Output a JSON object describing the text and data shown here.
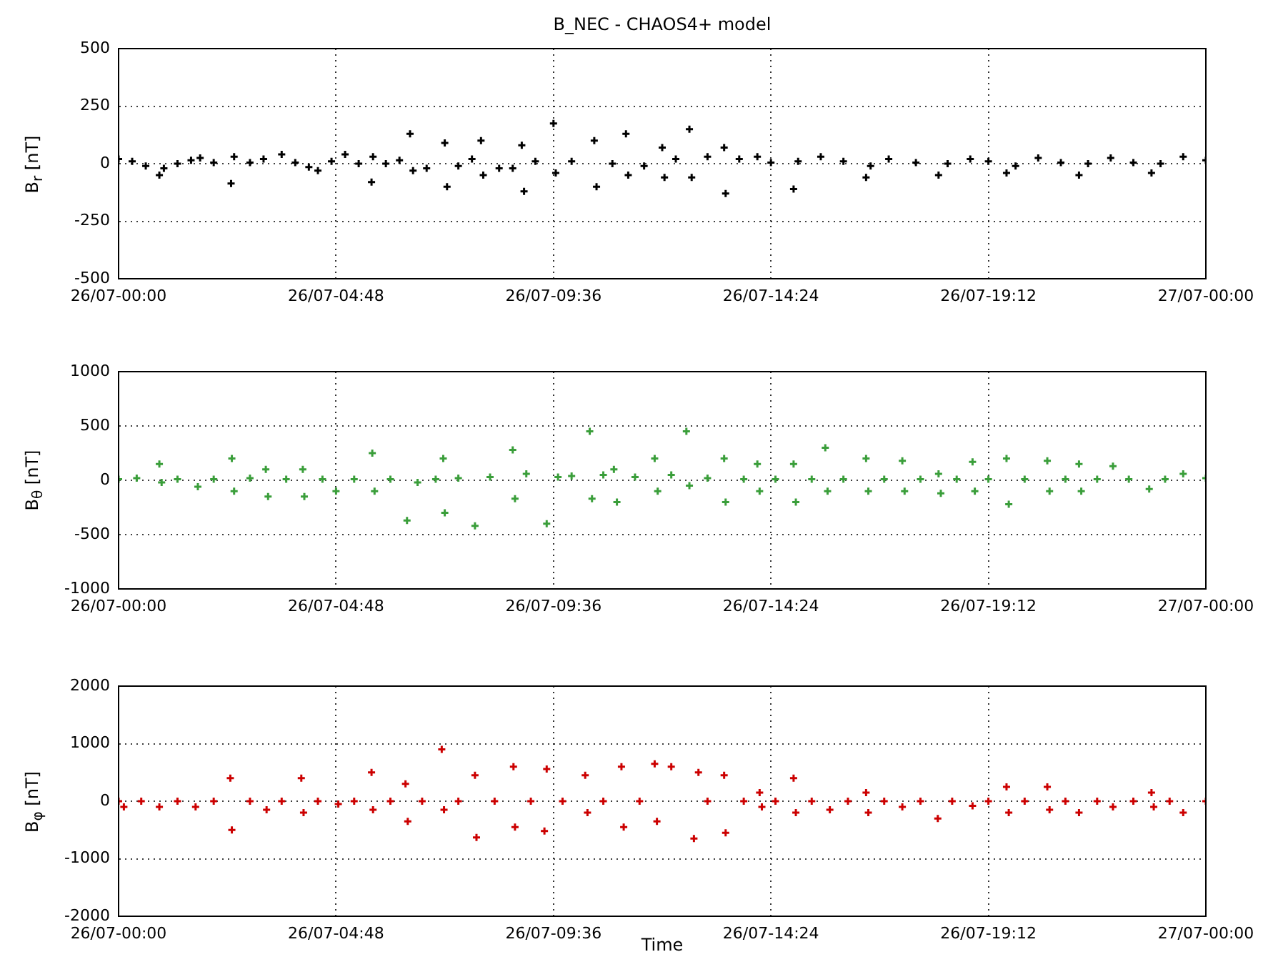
{
  "chart_data": [
    {
      "type": "scatter",
      "title": "B_NEC - CHAOS4+ model",
      "ylabel": "B$_{r}$ [nT]",
      "marker": "cross",
      "grid": true,
      "color": "#000000",
      "xlim": [
        "--07-26T00:00",
        "--07-27T00:00"
      ],
      "xticks": [
        {
          "value": "--07-26T00:00",
          "label": "26/07-00:00"
        },
        {
          "value": "--07-26T04:48",
          "label": "26/07-04:48"
        },
        {
          "value": "--07-26T09:36",
          "label": "26/07-09:36"
        },
        {
          "value": "--07-26T14:24",
          "label": "26/07-14:24"
        },
        {
          "value": "--07-26T19:12",
          "label": "26/07-19:12"
        },
        {
          "value": "--07-27T00:00",
          "label": "27/07-00:00"
        }
      ],
      "ylim": [
        -500,
        500
      ],
      "yticks": [
        -500,
        -250,
        0,
        250,
        500
      ],
      "x": [
        "--07-26T00:00",
        "--07-26T00:18",
        "--07-26T00:36",
        "--07-26T00:54",
        "--07-26T01:00",
        "--07-26T01:18",
        "--07-26T01:36",
        "--07-26T01:48",
        "--07-26T02:06",
        "--07-26T02:29",
        "--07-26T02:33",
        "--07-26T02:54",
        "--07-26T03:12",
        "--07-26T03:36",
        "--07-26T03:54",
        "--07-26T04:12",
        "--07-26T04:24",
        "--07-26T04:42",
        "--07-26T05:00",
        "--07-26T05:18",
        "--07-26T05:35",
        "--07-26T05:37",
        "--07-26T05:54",
        "--07-26T06:12",
        "--07-26T06:26",
        "--07-26T06:30",
        "--07-26T06:48",
        "--07-26T07:12",
        "--07-26T07:15",
        "--07-26T07:30",
        "--07-26T07:48",
        "--07-26T08:00",
        "--07-26T08:03",
        "--07-26T08:24",
        "--07-26T08:42",
        "--07-26T08:54",
        "--07-26T08:57",
        "--07-26T09:12",
        "--07-26T09:36",
        "--07-26T09:39",
        "--07-26T10:00",
        "--07-26T10:30",
        "--07-26T10:33",
        "--07-26T10:54",
        "--07-26T11:12",
        "--07-26T11:15",
        "--07-26T11:36",
        "--07-26T12:00",
        "--07-26T12:03",
        "--07-26T12:18",
        "--07-26T12:36",
        "--07-26T12:39",
        "--07-26T13:00",
        "--07-26T13:22",
        "--07-26T13:24",
        "--07-26T13:42",
        "--07-26T14:06",
        "--07-26T14:24",
        "--07-26T14:54",
        "--07-26T15:00",
        "--07-26T15:30",
        "--07-26T16:00",
        "--07-26T16:30",
        "--07-26T16:36",
        "--07-26T17:00",
        "--07-26T17:36",
        "--07-26T18:06",
        "--07-26T18:18",
        "--07-26T18:48",
        "--07-26T19:12",
        "--07-26T19:36",
        "--07-26T19:48",
        "--07-26T20:18",
        "--07-26T20:48",
        "--07-26T21:12",
        "--07-26T21:24",
        "--07-26T21:54",
        "--07-26T22:24",
        "--07-26T22:48",
        "--07-26T23:00",
        "--07-26T23:30",
        "--07-27T00:00"
      ],
      "values": [
        20,
        10,
        -10,
        -50,
        -20,
        0,
        15,
        25,
        5,
        -86,
        30,
        5,
        20,
        40,
        5,
        -15,
        -30,
        10,
        40,
        0,
        -80,
        30,
        0,
        15,
        130,
        -30,
        -20,
        90,
        -100,
        -10,
        20,
        100,
        -50,
        -20,
        -20,
        80,
        -120,
        10,
        175,
        -40,
        10,
        100,
        -100,
        0,
        130,
        -50,
        -10,
        70,
        -60,
        20,
        150,
        -60,
        30,
        70,
        -130,
        20,
        30,
        5,
        -110,
        10,
        30,
        10,
        -60,
        -10,
        20,
        5,
        -50,
        0,
        20,
        10,
        -40,
        -10,
        25,
        5,
        -50,
        0,
        25,
        5,
        -40,
        0,
        30,
        15
      ]
    },
    {
      "type": "scatter",
      "ylabel": "B$_{θ}$ [nT]",
      "marker": "cross",
      "grid": true,
      "color": "#3a9e3a",
      "xlim": [
        "--07-26T00:00",
        "--07-27T00:00"
      ],
      "xticks": [
        {
          "value": "--07-26T00:00",
          "label": "26/07-00:00"
        },
        {
          "value": "--07-26T04:48",
          "label": "26/07-04:48"
        },
        {
          "value": "--07-26T09:36",
          "label": "26/07-09:36"
        },
        {
          "value": "--07-26T14:24",
          "label": "26/07-14:24"
        },
        {
          "value": "--07-26T19:12",
          "label": "26/07-19:12"
        },
        {
          "value": "--07-27T00:00",
          "label": "27/07-00:00"
        }
      ],
      "ylim": [
        -1000,
        1000
      ],
      "yticks": [
        -1000,
        -500,
        0,
        500,
        1000
      ],
      "x": [
        "--07-26T00:00",
        "--07-26T00:24",
        "--07-26T00:54",
        "--07-26T00:57",
        "--07-26T01:18",
        "--07-26T01:45",
        "--07-26T02:06",
        "--07-26T02:30",
        "--07-26T02:33",
        "--07-26T02:54",
        "--07-26T03:15",
        "--07-26T03:18",
        "--07-26T03:42",
        "--07-26T04:04",
        "--07-26T04:06",
        "--07-26T04:30",
        "--07-26T04:48",
        "--07-26T05:12",
        "--07-26T05:36",
        "--07-26T05:39",
        "--07-26T06:00",
        "--07-26T06:22",
        "--07-26T06:36",
        "--07-26T07:00",
        "--07-26T07:10",
        "--07-26T07:12",
        "--07-26T07:30",
        "--07-26T07:52",
        "--07-26T08:12",
        "--07-26T08:42",
        "--07-26T08:45",
        "--07-26T09:00",
        "--07-26T09:27",
        "--07-26T09:42",
        "--07-26T10:00",
        "--07-26T10:24",
        "--07-26T10:27",
        "--07-26T10:42",
        "--07-26T10:56",
        "--07-26T11:00",
        "--07-26T11:24",
        "--07-26T11:50",
        "--07-26T11:54",
        "--07-26T12:12",
        "--07-26T12:32",
        "--07-26T12:36",
        "--07-26T13:00",
        "--07-26T13:22",
        "--07-26T13:24",
        "--07-26T13:48",
        "--07-26T14:06",
        "--07-26T14:09",
        "--07-26T14:30",
        "--07-26T14:54",
        "--07-26T14:57",
        "--07-26T15:18",
        "--07-26T15:36",
        "--07-26T15:39",
        "--07-26T16:00",
        "--07-26T16:30",
        "--07-26T16:33",
        "--07-26T16:54",
        "--07-26T17:18",
        "--07-26T17:21",
        "--07-26T17:42",
        "--07-26T18:06",
        "--07-26T18:09",
        "--07-26T18:30",
        "--07-26T18:51",
        "--07-26T18:54",
        "--07-26T19:12",
        "--07-26T19:36",
        "--07-26T19:39",
        "--07-26T20:00",
        "--07-26T20:30",
        "--07-26T20:33",
        "--07-26T20:54",
        "--07-26T21:12",
        "--07-26T21:15",
        "--07-26T21:36",
        "--07-26T21:57",
        "--07-26T22:18",
        "--07-26T22:45",
        "--07-26T23:06",
        "--07-26T23:30",
        "--07-27T00:00"
      ],
      "values": [
        10,
        20,
        150,
        -20,
        10,
        -60,
        10,
        200,
        -100,
        20,
        100,
        -150,
        10,
        100,
        -150,
        10,
        -100,
        10,
        250,
        -100,
        10,
        -370,
        -20,
        10,
        200,
        -300,
        20,
        -420,
        30,
        280,
        -170,
        60,
        -400,
        30,
        40,
        450,
        -170,
        50,
        100,
        -200,
        30,
        200,
        -100,
        50,
        450,
        -50,
        20,
        200,
        -200,
        10,
        150,
        -100,
        10,
        150,
        -200,
        10,
        300,
        -100,
        10,
        200,
        -100,
        10,
        180,
        -100,
        10,
        60,
        -120,
        10,
        170,
        -100,
        10,
        200,
        -220,
        10,
        180,
        -100,
        10,
        150,
        -100,
        10,
        130,
        10,
        -80,
        10,
        60,
        20
      ]
    },
    {
      "type": "scatter",
      "ylabel": "B$_{φ}$ [nT]",
      "xlabel": "Time",
      "marker": "cross",
      "grid": true,
      "color": "#cc0000",
      "xlim": [
        "--07-26T00:00",
        "--07-27T00:00"
      ],
      "xticks": [
        {
          "value": "--07-26T00:00",
          "label": "26/07-00:00"
        },
        {
          "value": "--07-26T04:48",
          "label": "26/07-04:48"
        },
        {
          "value": "--07-26T09:36",
          "label": "26/07-09:36"
        },
        {
          "value": "--07-26T14:24",
          "label": "26/07-14:24"
        },
        {
          "value": "--07-26T19:12",
          "label": "26/07-19:12"
        },
        {
          "value": "--07-27T00:00",
          "label": "27/07-00:00"
        }
      ],
      "ylim": [
        -2000,
        2000
      ],
      "yticks": [
        -2000,
        -1000,
        0,
        1000,
        2000
      ],
      "x": [
        "--07-26T00:00",
        "--07-26T00:07",
        "--07-26T00:30",
        "--07-26T00:54",
        "--07-26T01:18",
        "--07-26T01:42",
        "--07-26T02:06",
        "--07-26T02:28",
        "--07-26T02:30",
        "--07-26T02:54",
        "--07-26T03:16",
        "--07-26T03:36",
        "--07-26T04:02",
        "--07-26T04:05",
        "--07-26T04:24",
        "--07-26T04:51",
        "--07-26T05:12",
        "--07-26T05:35",
        "--07-26T05:37",
        "--07-26T06:00",
        "--07-26T06:20",
        "--07-26T06:23",
        "--07-26T06:42",
        "--07-26T07:08",
        "--07-26T07:11",
        "--07-26T07:30",
        "--07-26T07:52",
        "--07-26T07:54",
        "--07-26T08:18",
        "--07-26T08:43",
        "--07-26T08:45",
        "--07-26T09:06",
        "--07-26T09:24",
        "--07-26T09:27",
        "--07-26T09:48",
        "--07-26T10:18",
        "--07-26T10:21",
        "--07-26T10:42",
        "--07-26T11:06",
        "--07-26T11:09",
        "--07-26T11:30",
        "--07-26T11:50",
        "--07-26T11:53",
        "--07-26T12:12",
        "--07-26T12:42",
        "--07-26T12:48",
        "--07-26T13:00",
        "--07-26T13:22",
        "--07-26T13:24",
        "--07-26T13:48",
        "--07-26T14:09",
        "--07-26T14:12",
        "--07-26T14:30",
        "--07-26T14:54",
        "--07-26T14:57",
        "--07-26T15:18",
        "--07-26T15:42",
        "--07-26T16:06",
        "--07-26T16:30",
        "--07-26T16:33",
        "--07-26T16:54",
        "--07-26T17:18",
        "--07-26T17:42",
        "--07-26T18:05",
        "--07-26T18:24",
        "--07-26T18:51",
        "--07-26T19:12",
        "--07-26T19:36",
        "--07-26T19:39",
        "--07-26T20:00",
        "--07-26T20:30",
        "--07-26T20:33",
        "--07-26T20:54",
        "--07-26T21:12",
        "--07-26T21:36",
        "--07-26T21:57",
        "--07-26T22:24",
        "--07-26T22:48",
        "--07-26T22:51",
        "--07-26T23:12",
        "--07-26T23:30",
        "--07-27T00:00"
      ],
      "values": [
        0,
        -100,
        0,
        -100,
        0,
        -100,
        0,
        400,
        -500,
        0,
        -150,
        0,
        400,
        -200,
        0,
        -50,
        0,
        500,
        -150,
        0,
        300,
        -350,
        0,
        900,
        -150,
        0,
        450,
        -630,
        0,
        600,
        -450,
        0,
        -520,
        560,
        0,
        450,
        -200,
        0,
        600,
        -450,
        0,
        650,
        -350,
        600,
        -650,
        500,
        0,
        450,
        -550,
        0,
        150,
        -100,
        0,
        400,
        -200,
        0,
        -150,
        0,
        150,
        -200,
        0,
        -100,
        0,
        -300,
        0,
        -80,
        0,
        250,
        -200,
        0,
        250,
        -150,
        0,
        -200,
        0,
        -100,
        0,
        150,
        -100,
        0,
        -200,
        0
      ]
    }
  ]
}
